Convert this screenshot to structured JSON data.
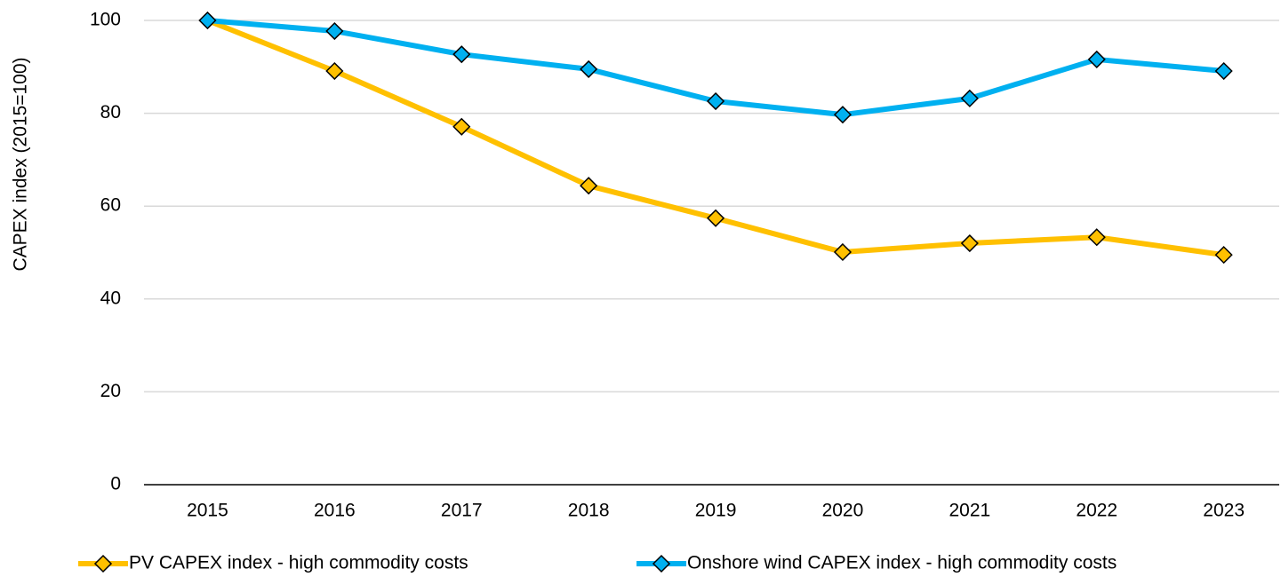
{
  "chart_data": {
    "type": "line",
    "y_label": "CAPEX index (2015=100)",
    "categories": [
      "2015",
      "2016",
      "2017",
      "2018",
      "2019",
      "2020",
      "2021",
      "2022",
      "2023"
    ],
    "series": [
      {
        "name": "PV CAPEX index - high commodity costs",
        "color": "#FFC000",
        "values": [
          100,
          89.1,
          77.1,
          64.4,
          57.4,
          50.1,
          52.0,
          53.3,
          49.5
        ]
      },
      {
        "name": "Onshore wind CAPEX index - high commodity costs",
        "color": "#00B0F0",
        "values": [
          100,
          97.7,
          92.7,
          89.5,
          82.6,
          79.7,
          83.2,
          91.6,
          89.1
        ]
      }
    ],
    "ylim": [
      0,
      100
    ],
    "yticks": [
      0,
      20,
      40,
      60,
      80,
      100
    ],
    "grid": true,
    "legend": "bottom"
  }
}
